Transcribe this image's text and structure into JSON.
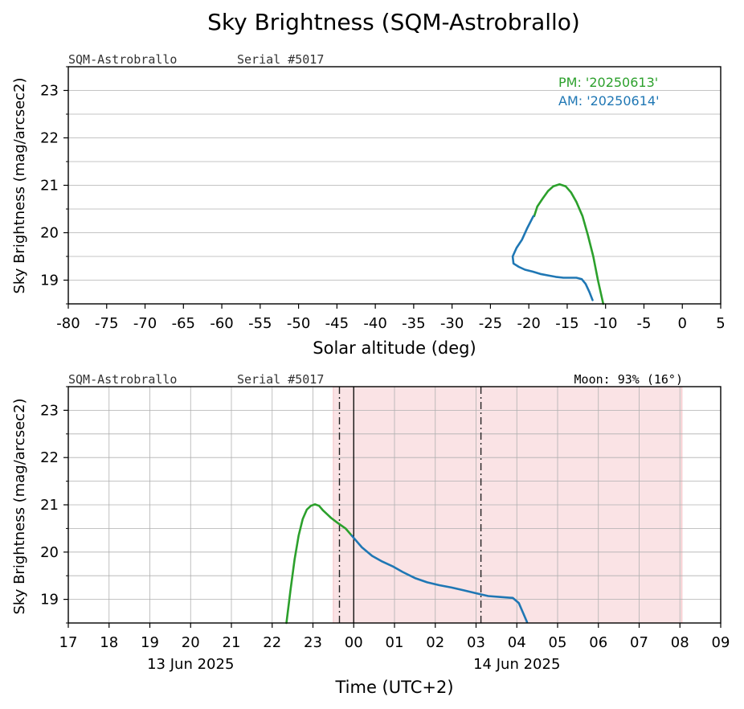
{
  "page": {
    "title": "Sky Brightness (SQM-Astrobrallo)"
  },
  "colors": {
    "pm": "#2ca02c",
    "am": "#1f77b4",
    "night_shade": "#f4c0c5"
  },
  "chart_data": [
    {
      "type": "line",
      "name": "top",
      "device": "SQM-Astrobrallo",
      "serial": "Serial #5017",
      "xlabel": "Solar altitude (deg)",
      "ylabel": "Sky Brightness (mag/arcsec2)",
      "xlim": [
        -80,
        5
      ],
      "ylim": [
        18.5,
        23.5
      ],
      "xticks": [
        -80,
        -75,
        -70,
        -65,
        -60,
        -55,
        -50,
        -45,
        -40,
        -35,
        -30,
        -25,
        -20,
        -15,
        -10,
        -5,
        0,
        5
      ],
      "xtick_labels": [
        "-80",
        "-75",
        "-70",
        "-65",
        "-60",
        "-55",
        "-50",
        "-45",
        "-40",
        "-35",
        "-30",
        "-25",
        "-20",
        "-15",
        "-10",
        "-5",
        "0",
        "5"
      ],
      "yticks": [
        19,
        20,
        21,
        22,
        23
      ],
      "ytick_labels": [
        "19",
        "20",
        "21",
        "22",
        "23"
      ],
      "legend": {
        "position": "top-right",
        "pm_label": "PM: '20250613'",
        "am_label": "AM: '20250614'"
      },
      "grid": true,
      "series": [
        {
          "name": "PM: '20250613'",
          "color_key": "pm",
          "x": [
            -19.3,
            -18.9,
            -18.2,
            -17.5,
            -16.8,
            -16.0,
            -15.2,
            -14.5,
            -13.8,
            -13.0,
            -12.3,
            -11.6,
            -11.0,
            -10.3
          ],
          "y": [
            20.35,
            20.55,
            20.72,
            20.88,
            20.98,
            21.02,
            20.98,
            20.85,
            20.65,
            20.35,
            19.95,
            19.5,
            19.0,
            18.5
          ]
        },
        {
          "name": "AM: '20250614'",
          "color_key": "am",
          "x": [
            -19.4,
            -20.2,
            -20.9,
            -21.6,
            -22.1,
            -22.0,
            -21.3,
            -20.5,
            -19.5,
            -18.5,
            -17.5,
            -16.5,
            -15.5,
            -14.5,
            -13.8,
            -13.1,
            -12.6,
            -12.1,
            -11.7
          ],
          "y": [
            20.35,
            20.1,
            19.85,
            19.68,
            19.5,
            19.35,
            19.28,
            19.22,
            19.18,
            19.13,
            19.1,
            19.07,
            19.05,
            19.05,
            19.05,
            19.02,
            18.92,
            18.75,
            18.58
          ]
        }
      ]
    },
    {
      "type": "line",
      "name": "bottom",
      "device": "SQM-Astrobrallo",
      "serial": "Serial #5017",
      "moon": "Moon: 93% (16°)",
      "xlabel": "Time (UTC+2)",
      "ylabel": "Sky Brightness (mag/arcsec2)",
      "x_units": "hours since 13 Jun 2025 00:00 (UTC+2)",
      "xlim": [
        17,
        33
      ],
      "ylim": [
        18.5,
        23.5
      ],
      "xticks": [
        17,
        18,
        19,
        20,
        21,
        22,
        23,
        24,
        25,
        26,
        27,
        28,
        29,
        30,
        31,
        32,
        33
      ],
      "xtick_labels": [
        "17",
        "18",
        "19",
        "20",
        "21",
        "22",
        "23",
        "00",
        "01",
        "02",
        "03",
        "04",
        "05",
        "06",
        "07",
        "08",
        "09"
      ],
      "date_labels": [
        {
          "x": 20.0,
          "text": "13 Jun 2025"
        },
        {
          "x": 28.0,
          "text": "14 Jun 2025"
        }
      ],
      "yticks": [
        19,
        20,
        21,
        22,
        23
      ],
      "ytick_labels": [
        "19",
        "20",
        "21",
        "22",
        "23"
      ],
      "shaded_span": [
        23.5,
        32.05
      ],
      "dashdot_lines": [
        23.65,
        27.12
      ],
      "solid_line": 24.0,
      "grid": true,
      "series": [
        {
          "name": "PM",
          "color_key": "pm",
          "x": [
            22.35,
            22.45,
            22.55,
            22.65,
            22.75,
            22.85,
            22.95,
            23.05,
            23.15,
            23.25,
            23.35,
            23.45,
            23.6,
            23.8,
            23.95
          ],
          "y": [
            18.5,
            19.2,
            19.85,
            20.35,
            20.7,
            20.9,
            20.98,
            21.01,
            20.98,
            20.88,
            20.8,
            20.72,
            20.62,
            20.5,
            20.35
          ]
        },
        {
          "name": "AM",
          "color_key": "am",
          "x": [
            23.95,
            24.2,
            24.45,
            24.7,
            24.95,
            25.2,
            25.5,
            25.8,
            26.1,
            26.4,
            26.7,
            27.0,
            27.3,
            27.6,
            27.9,
            28.05,
            28.15,
            28.25
          ],
          "y": [
            20.35,
            20.1,
            19.92,
            19.8,
            19.7,
            19.58,
            19.45,
            19.36,
            19.3,
            19.25,
            19.19,
            19.13,
            19.07,
            19.05,
            19.03,
            18.92,
            18.72,
            18.52
          ]
        }
      ]
    }
  ]
}
